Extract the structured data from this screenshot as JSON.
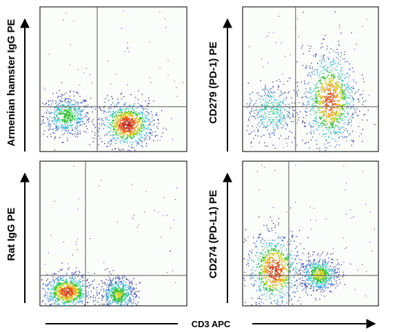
{
  "figure": {
    "x_axis_label": "CD3 APC"
  },
  "colors": {
    "density_scale": [
      "#1f1fb0",
      "#2a57d6",
      "#16a8e0",
      "#19c99a",
      "#39c43a",
      "#c9d320",
      "#f0a21a",
      "#e2521c",
      "#c21f14"
    ],
    "gate_lines": "#555555",
    "frame": "#222222",
    "background": "#ffffff"
  },
  "chart_data": [
    {
      "type": "scatter",
      "subtype": "flow-cytometry density dot plot",
      "position": "top-left",
      "ylabel": "Armenian hamster IgG PE",
      "xlabel": "",
      "xlim": [
        0,
        1
      ],
      "ylim": [
        0,
        1
      ],
      "grid": false,
      "quadrant_gate": [
        0.39,
        0.31
      ],
      "populations": [
        {
          "name": "",
          "center": [
            0.18,
            0.25
          ],
          "spread": [
            0.08,
            0.07
          ],
          "weight": 0.4,
          "peak": 0.55
        },
        {
          "name": "",
          "center": [
            0.59,
            0.19
          ],
          "spread": [
            0.09,
            0.08
          ],
          "weight": 0.6,
          "peak": 0.95
        }
      ]
    },
    {
      "type": "scatter",
      "subtype": "flow-cytometry density dot plot",
      "position": "top-right",
      "ylabel": "CD279 (PD-1) PE",
      "xlabel": "",
      "xlim": [
        0,
        1
      ],
      "ylim": [
        0,
        1
      ],
      "grid": false,
      "quadrant_gate": [
        0.39,
        0.31
      ],
      "populations": [
        {
          "name": "",
          "center": [
            0.21,
            0.28
          ],
          "spread": [
            0.09,
            0.1
          ],
          "weight": 0.3,
          "peak": 0.45
        },
        {
          "name": "",
          "center": [
            0.64,
            0.36
          ],
          "spread": [
            0.1,
            0.17
          ],
          "weight": 0.7,
          "peak": 0.85
        }
      ]
    },
    {
      "type": "scatter",
      "subtype": "flow-cytometry density dot plot",
      "position": "bottom-left",
      "ylabel": "Rat IgG PE",
      "xlabel": "",
      "xlim": [
        0,
        1
      ],
      "ylim": [
        0,
        1
      ],
      "grid": false,
      "quadrant_gate": [
        0.31,
        0.21
      ],
      "populations": [
        {
          "name": "",
          "center": [
            0.18,
            0.1
          ],
          "spread": [
            0.08,
            0.06
          ],
          "weight": 0.55,
          "peak": 0.9
        },
        {
          "name": "",
          "center": [
            0.53,
            0.08
          ],
          "spread": [
            0.06,
            0.06
          ],
          "weight": 0.45,
          "peak": 0.6
        }
      ]
    },
    {
      "type": "scatter",
      "subtype": "flow-cytometry density dot plot",
      "position": "bottom-right",
      "ylabel": "CD274 (PD-L1) PE",
      "xlabel": "",
      "xlim": [
        0,
        1
      ],
      "ylim": [
        0,
        1
      ],
      "grid": false,
      "quadrant_gate": [
        0.34,
        0.21
      ],
      "populations": [
        {
          "name": "",
          "center": [
            0.23,
            0.25
          ],
          "spread": [
            0.1,
            0.13
          ],
          "weight": 0.55,
          "peak": 0.9
        },
        {
          "name": "",
          "center": [
            0.56,
            0.22
          ],
          "spread": [
            0.07,
            0.06
          ],
          "weight": 0.45,
          "peak": 0.65
        }
      ]
    }
  ]
}
